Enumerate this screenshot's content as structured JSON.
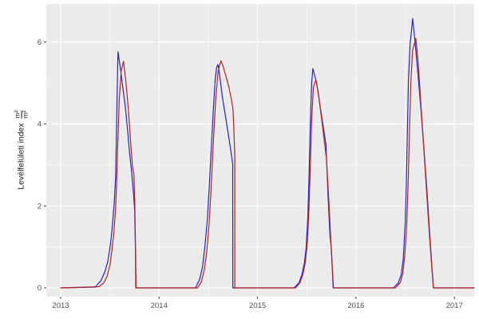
{
  "chart_data": {
    "type": "line",
    "title": "",
    "xlabel": "",
    "ylabel_text": "Levélfelületi index",
    "ylabel_frac_num": "m²",
    "ylabel_frac_den": "m²",
    "x_ticks": [
      2013,
      2014,
      2015,
      2016,
      2017
    ],
    "y_ticks": [
      0,
      2,
      4,
      6
    ],
    "x_minor": [
      2013.5,
      2014.5,
      2015.5,
      2016.5
    ],
    "y_minor": [
      1,
      3,
      5
    ],
    "xlim": [
      2012.854,
      2017.201
    ],
    "ylim": [
      -0.214,
      6.926
    ],
    "grid": "major+minor",
    "legend": "none",
    "panel_bg": "#EBEBEB",
    "grid_color": "#FFFFFF",
    "tick_mark_color": "#333333",
    "tick_label_color": "#4D4D4D",
    "axis_title_color": "#1A1A1A",
    "series": [
      {
        "name": "lai-series-blue",
        "color": "#2222D0",
        "points": [
          [
            2013.0,
            0
          ],
          [
            2013.35,
            0.02
          ],
          [
            2013.41,
            0.18
          ],
          [
            2013.45,
            0.4
          ],
          [
            2013.48,
            0.66
          ],
          [
            2013.505,
            1.05
          ],
          [
            2013.525,
            1.5
          ],
          [
            2013.545,
            2.1
          ],
          [
            2013.558,
            2.7
          ],
          [
            2013.568,
            3.9
          ],
          [
            2013.575,
            4.9
          ],
          [
            2013.582,
            5.76
          ],
          [
            2013.61,
            5.3
          ],
          [
            2013.63,
            4.9
          ],
          [
            2013.655,
            4.45
          ],
          [
            2013.68,
            3.85
          ],
          [
            2013.7,
            3.3
          ],
          [
            2013.72,
            2.85
          ],
          [
            2013.74,
            2.3
          ],
          [
            2013.752,
            1.9
          ],
          [
            2013.758,
            1.1
          ],
          [
            2013.763,
            0
          ],
          [
            2014.37,
            0
          ],
          [
            2014.41,
            0.2
          ],
          [
            2014.44,
            0.5
          ],
          [
            2014.465,
            1.0
          ],
          [
            2014.49,
            1.65
          ],
          [
            2014.51,
            2.5
          ],
          [
            2014.53,
            3.4
          ],
          [
            2014.55,
            4.3
          ],
          [
            2014.57,
            5.1
          ],
          [
            2014.585,
            5.38
          ],
          [
            2014.598,
            5.45
          ],
          [
            2014.615,
            5.2
          ],
          [
            2014.64,
            4.7
          ],
          [
            2014.67,
            4.25
          ],
          [
            2014.7,
            3.8
          ],
          [
            2014.725,
            3.4
          ],
          [
            2014.748,
            3.02
          ],
          [
            2014.7485,
            0
          ],
          [
            2015.37,
            0
          ],
          [
            2015.42,
            0.12
          ],
          [
            2015.45,
            0.32
          ],
          [
            2015.475,
            0.6
          ],
          [
            2015.495,
            1.0
          ],
          [
            2015.51,
            1.7
          ],
          [
            2015.523,
            2.7
          ],
          [
            2015.536,
            4.0
          ],
          [
            2015.55,
            5.0
          ],
          [
            2015.562,
            5.35
          ],
          [
            2015.6,
            5.0
          ],
          [
            2015.65,
            4.2
          ],
          [
            2015.695,
            3.5
          ],
          [
            2015.715,
            2.3
          ],
          [
            2015.736,
            1.25
          ],
          [
            2015.75,
            0.95
          ],
          [
            2015.76,
            0.45
          ],
          [
            2015.768,
            0
          ],
          [
            2016.38,
            0
          ],
          [
            2016.43,
            0.12
          ],
          [
            2016.46,
            0.32
          ],
          [
            2016.48,
            0.7
          ],
          [
            2016.5,
            1.6
          ],
          [
            2016.512,
            2.6
          ],
          [
            2016.522,
            3.8
          ],
          [
            2016.533,
            5.05
          ],
          [
            2016.55,
            5.95
          ],
          [
            2016.576,
            6.57
          ],
          [
            2016.6,
            6.0
          ],
          [
            2016.63,
            5.2
          ],
          [
            2016.66,
            4.35
          ],
          [
            2016.69,
            3.4
          ],
          [
            2016.72,
            2.4
          ],
          [
            2016.745,
            1.45
          ],
          [
            2016.757,
            1.02
          ],
          [
            2016.772,
            0.5
          ],
          [
            2016.787,
            0
          ],
          [
            2017.2,
            0
          ]
        ]
      },
      {
        "name": "lai-series-red",
        "color": "#B22222",
        "points": [
          [
            2013.0,
            0
          ],
          [
            2013.39,
            0.03
          ],
          [
            2013.44,
            0.13
          ],
          [
            2013.47,
            0.28
          ],
          [
            2013.5,
            0.55
          ],
          [
            2013.52,
            0.9
          ],
          [
            2013.54,
            1.35
          ],
          [
            2013.557,
            1.9
          ],
          [
            2013.568,
            2.5
          ],
          [
            2013.58,
            3.5
          ],
          [
            2013.595,
            4.6
          ],
          [
            2013.615,
            5.3
          ],
          [
            2013.638,
            5.53
          ],
          [
            2013.662,
            5.05
          ],
          [
            2013.688,
            4.35
          ],
          [
            2013.71,
            3.6
          ],
          [
            2013.728,
            3.0
          ],
          [
            2013.737,
            2.85
          ],
          [
            2013.744,
            2.78
          ],
          [
            2013.753,
            2.15
          ],
          [
            2013.76,
            1.0
          ],
          [
            2013.766,
            0
          ],
          [
            2014.39,
            0
          ],
          [
            2014.43,
            0.15
          ],
          [
            2014.46,
            0.45
          ],
          [
            2014.485,
            0.9
          ],
          [
            2014.508,
            1.55
          ],
          [
            2014.528,
            2.4
          ],
          [
            2014.55,
            3.5
          ],
          [
            2014.575,
            4.6
          ],
          [
            2014.6,
            5.3
          ],
          [
            2014.628,
            5.54
          ],
          [
            2014.648,
            5.42
          ],
          [
            2014.68,
            5.15
          ],
          [
            2014.71,
            4.88
          ],
          [
            2014.735,
            4.6
          ],
          [
            2014.75,
            4.36
          ],
          [
            2014.758,
            3.95
          ],
          [
            2014.766,
            3.4
          ],
          [
            2014.7685,
            3.2
          ],
          [
            2014.769,
            0
          ],
          [
            2015.385,
            0
          ],
          [
            2015.43,
            0.12
          ],
          [
            2015.46,
            0.32
          ],
          [
            2015.487,
            0.65
          ],
          [
            2015.507,
            1.15
          ],
          [
            2015.522,
            1.9
          ],
          [
            2015.535,
            2.9
          ],
          [
            2015.55,
            4.1
          ],
          [
            2015.568,
            4.9
          ],
          [
            2015.593,
            5.08
          ],
          [
            2015.62,
            4.7
          ],
          [
            2015.66,
            3.95
          ],
          [
            2015.7,
            3.15
          ],
          [
            2015.725,
            2.1
          ],
          [
            2015.745,
            1.1
          ],
          [
            2015.758,
            0.55
          ],
          [
            2015.772,
            0
          ],
          [
            2016.4,
            0
          ],
          [
            2016.45,
            0.13
          ],
          [
            2016.475,
            0.35
          ],
          [
            2016.495,
            0.75
          ],
          [
            2016.515,
            1.5
          ],
          [
            2016.53,
            2.6
          ],
          [
            2016.543,
            3.8
          ],
          [
            2016.557,
            5.0
          ],
          [
            2016.575,
            5.8
          ],
          [
            2016.608,
            6.09
          ],
          [
            2016.632,
            5.5
          ],
          [
            2016.658,
            4.55
          ],
          [
            2016.688,
            3.45
          ],
          [
            2016.716,
            2.4
          ],
          [
            2016.74,
            1.5
          ],
          [
            2016.754,
            1.02
          ],
          [
            2016.77,
            0.5
          ],
          [
            2016.786,
            0
          ],
          [
            2017.2,
            0
          ]
        ]
      }
    ]
  }
}
